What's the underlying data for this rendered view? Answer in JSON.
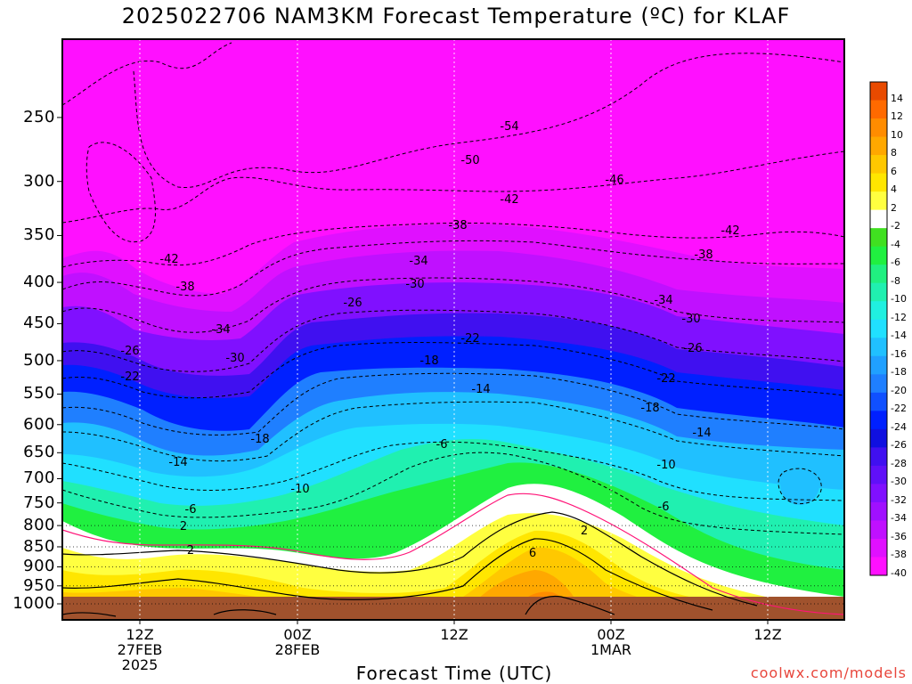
{
  "chart_data": {
    "type": "contour",
    "title": "2025022706 NAM3KM Forecast Temperature (ºC) for KLAF",
    "xlabel": "Forecast Time (UTC)",
    "ylabel": "",
    "y_scale": "log-pressure",
    "y_ticks": [
      250,
      300,
      350,
      400,
      450,
      500,
      550,
      600,
      650,
      700,
      750,
      800,
      850,
      900,
      950,
      1000
    ],
    "ylim": [
      1000,
      200
    ],
    "x_ticks": [
      {
        "label": "12Z",
        "date": "27FEB",
        "year": "2025",
        "x": "2025-02-27 12Z"
      },
      {
        "label": "00Z",
        "date": "28FEB",
        "year": "",
        "x": "2025-02-28 00Z"
      },
      {
        "label": "12Z",
        "date": "",
        "year": "",
        "x": "2025-02-28 12Z"
      },
      {
        "label": "00Z",
        "date": "1MAR",
        "year": "",
        "x": "2025-03-01 00Z"
      },
      {
        "label": "12Z",
        "date": "",
        "year": "",
        "x": "2025-03-01 12Z"
      }
    ],
    "xlim": [
      "2025-02-27 06Z",
      "2025-03-01 18Z"
    ],
    "grid": true,
    "colorbar_labels": [
      "14",
      "12",
      "10",
      "8",
      "6",
      "4",
      "2",
      "-2",
      "-4",
      "-6",
      "-8",
      "-10",
      "-12",
      "-14",
      "-16",
      "-18",
      "-20",
      "-22",
      "-24",
      "-26",
      "-28",
      "-30",
      "-32",
      "-34",
      "-36",
      "-38",
      "-40"
    ],
    "colorbar_colors": [
      "#e84a00",
      "#ff6a00",
      "#ff8c00",
      "#ffa800",
      "#ffc800",
      "#ffe600",
      "#ffff40",
      "#ffffff",
      "#40e020",
      "#20f040",
      "#20f080",
      "#20f0b0",
      "#20f0e0",
      "#20e0ff",
      "#20c0ff",
      "#20a0ff",
      "#1f7fff",
      "#1050ff",
      "#0020ff",
      "#1010e0",
      "#4010f0",
      "#6010f8",
      "#8010ff",
      "#a010ff",
      "#c010ff",
      "#e010ff",
      "#ff10ff"
    ],
    "contour_labels": [
      "-54",
      "-50",
      "-46",
      "-42",
      "-42",
      "-42",
      "-38",
      "-38",
      "-38",
      "-34",
      "-34",
      "-34",
      "-30",
      "-30",
      "-30",
      "-26",
      "-26",
      "-26",
      "-22",
      "-22",
      "-22",
      "-18",
      "-18",
      "-18",
      "-14",
      "-14",
      "-14",
      "-10",
      "-10",
      "-6",
      "-6",
      "-6",
      "2",
      "2",
      "2",
      "6"
    ]
  },
  "credit": "coolwx.com/models"
}
